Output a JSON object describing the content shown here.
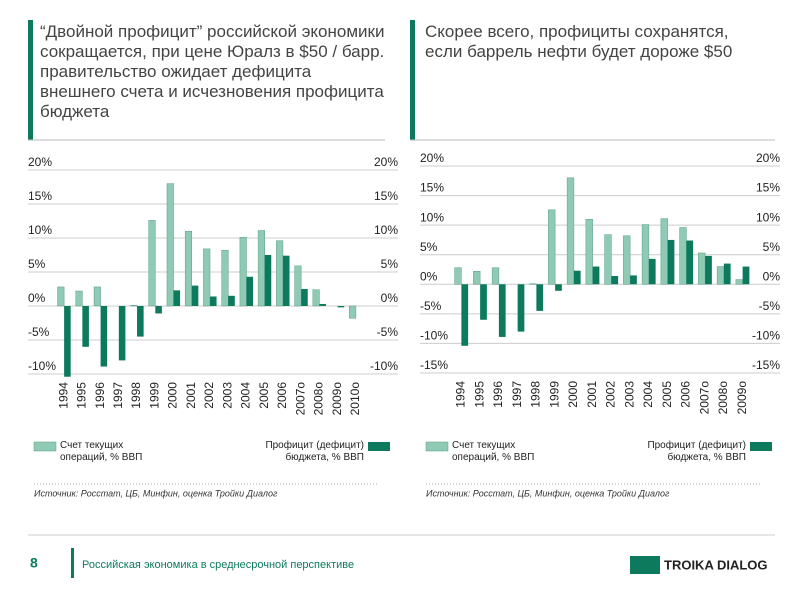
{
  "slide": {
    "page_number": "8",
    "footer": "Российская экономика в среднесрочной перспективе",
    "logo": "TROIKA DIALOG"
  },
  "chart_data": [
    {
      "type": "bar",
      "title": "“Двойной профицит” российской экономики сокращается, при цене Юралз в $50 / барр. правительство ожидает дефицита внешнего счета и исчезновения профицита бюджета",
      "categories": [
        "1994",
        "1995",
        "1996",
        "1997",
        "1998",
        "1999",
        "2000",
        "2001",
        "2002",
        "2003",
        "2004",
        "2005",
        "2006",
        "2007о",
        "2008о",
        "2009о",
        "2010о"
      ],
      "series": [
        {
          "name": "Счет текущих операций, % ВВП",
          "color": "#8fcab4",
          "values": [
            2.8,
            2.2,
            2.8,
            0,
            0.1,
            12.6,
            18,
            11,
            8.4,
            8.2,
            10.1,
            11.1,
            9.6,
            5.9,
            2.4,
            0,
            -1.8
          ]
        },
        {
          "name": "Профицит (дефицит) бюджета, % ВВП",
          "color": "#0d7a5e",
          "values": [
            -10.4,
            -6,
            -8.9,
            -8,
            -4.5,
            -1.1,
            2.3,
            3,
            1.4,
            1.5,
            4.3,
            7.5,
            7.4,
            2.5,
            0.3,
            -0.2,
            null
          ]
        }
      ],
      "ylim": [
        -10,
        20
      ],
      "yticks": [
        {
          "value": -10,
          "label": "-10%"
        },
        {
          "value": -5,
          "label": "-5%"
        },
        {
          "value": 0,
          "label": "0%"
        },
        {
          "value": 5,
          "label": "5%"
        },
        {
          "value": 10,
          "label": "10%"
        },
        {
          "value": 15,
          "label": "15%"
        },
        {
          "value": 20,
          "label": "20%"
        }
      ],
      "grid": true,
      "source": "Источник: Росстат, ЦБ, Минфин, оценка Тройки Диалог"
    },
    {
      "type": "bar",
      "title": "Скорее всего, профициты сохранятся, если баррель нефти будет дороже $50",
      "categories": [
        "1994",
        "1995",
        "1996",
        "1997",
        "1998",
        "1999",
        "2000",
        "2001",
        "2002",
        "2003",
        "2004",
        "2005",
        "2006",
        "2007о",
        "2008о",
        "2009о"
      ],
      "series": [
        {
          "name": "Счет текущих операций, % ВВП",
          "color": "#8fcab4",
          "values": [
            2.8,
            2.2,
            2.8,
            0,
            0.1,
            12.6,
            18,
            11,
            8.4,
            8.2,
            10.1,
            11.1,
            9.6,
            5.3,
            3,
            0.8
          ]
        },
        {
          "name": "Профицит (дефицит) бюджета, % ВВП",
          "color": "#0d7a5e",
          "values": [
            -10.4,
            -6,
            -8.9,
            -8,
            -4.5,
            -1.1,
            2.3,
            3,
            1.4,
            1.5,
            4.3,
            7.5,
            7.4,
            4.8,
            3.5,
            3
          ]
        }
      ],
      "ylim": [
        -15,
        20
      ],
      "yticks": [
        {
          "value": -15,
          "label": "-15%"
        },
        {
          "value": -10,
          "label": "-10%"
        },
        {
          "value": -5,
          "label": "-5%"
        },
        {
          "value": 0,
          "label": "0%"
        },
        {
          "value": 5,
          "label": "5%"
        },
        {
          "value": 10,
          "label": "10%"
        },
        {
          "value": 15,
          "label": "15%"
        },
        {
          "value": 20,
          "label": "20%"
        }
      ],
      "grid": true,
      "source": "Источник: Росстат, ЦБ, Минфин, оценка Тройки Диалог"
    }
  ]
}
